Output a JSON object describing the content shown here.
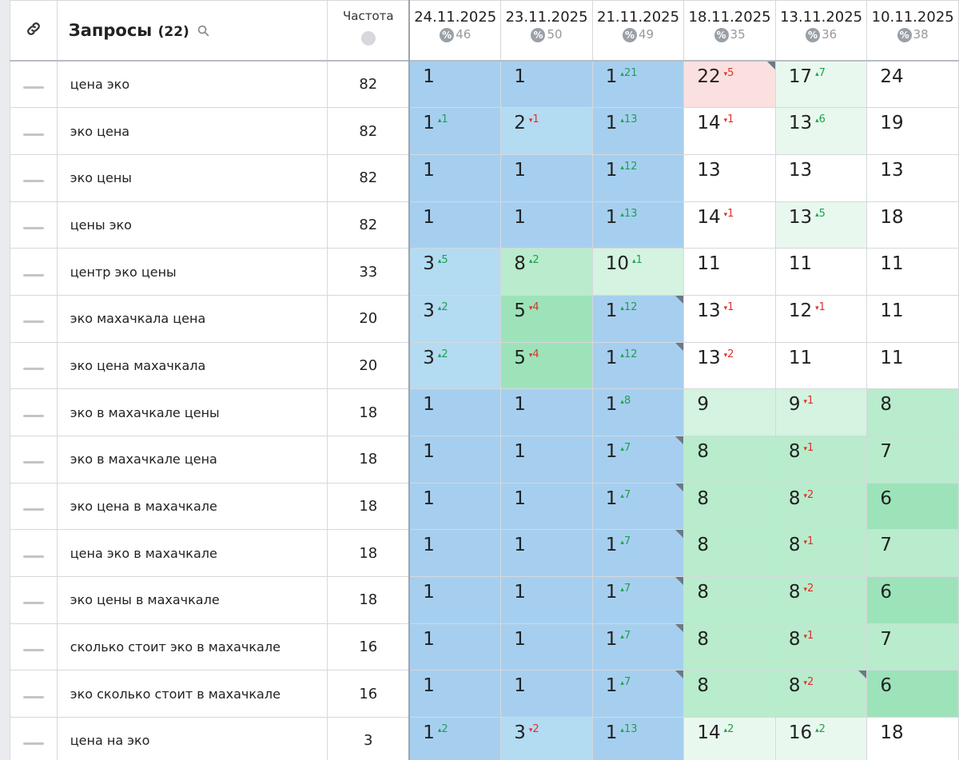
{
  "header": {
    "link_icon": "link-icon",
    "queries_title": "Запросы",
    "queries_count": "(22)",
    "search_icon": "search-icon",
    "frequency_label": "Частота",
    "frequency_icon": "globe-icon",
    "dates": [
      {
        "date": "24.11.2025",
        "pct": "46"
      },
      {
        "date": "23.11.2025",
        "pct": "50"
      },
      {
        "date": "21.11.2025",
        "pct": "49"
      },
      {
        "date": "18.11.2025",
        "pct": "35"
      },
      {
        "date": "13.11.2025",
        "pct": "36"
      },
      {
        "date": "10.11.2025",
        "pct": "38"
      }
    ],
    "pct_icon": "%"
  },
  "colors": {
    "top": "#a6cfef",
    "high": "#b3dbf2",
    "green_light": "#d4f3e0",
    "green": "#b8eccc",
    "green_dark": "#9de3ba",
    "pink": "#fbe0e0",
    "white": "#ffffff",
    "up": "#1da14e",
    "down": "#e0302a"
  },
  "rows": [
    {
      "query": "цена эко",
      "freq": "82",
      "cells": [
        {
          "v": "1",
          "c": "top"
        },
        {
          "v": "1",
          "c": "top"
        },
        {
          "v": "1",
          "d": "21",
          "dir": "up",
          "c": "top"
        },
        {
          "v": "22",
          "d": "5",
          "dir": "down",
          "c": "pk",
          "tri": true
        },
        {
          "v": "17",
          "d": "7",
          "dir": "up",
          "c": "gl"
        },
        {
          "v": "24",
          "c": "w"
        }
      ]
    },
    {
      "query": "эко цена",
      "freq": "82",
      "cells": [
        {
          "v": "1",
          "d": "1",
          "dir": "up",
          "c": "top"
        },
        {
          "v": "2",
          "d": "1",
          "dir": "down",
          "c": "hi"
        },
        {
          "v": "1",
          "d": "13",
          "dir": "up",
          "c": "top"
        },
        {
          "v": "14",
          "d": "1",
          "dir": "down",
          "c": "w"
        },
        {
          "v": "13",
          "d": "6",
          "dir": "up",
          "c": "gl"
        },
        {
          "v": "19",
          "c": "w"
        }
      ]
    },
    {
      "query": "эко цены",
      "freq": "82",
      "cells": [
        {
          "v": "1",
          "c": "top"
        },
        {
          "v": "1",
          "c": "top"
        },
        {
          "v": "1",
          "d": "12",
          "dir": "up",
          "c": "top"
        },
        {
          "v": "13",
          "c": "w"
        },
        {
          "v": "13",
          "c": "w"
        },
        {
          "v": "13",
          "c": "w"
        }
      ]
    },
    {
      "query": "цены эко",
      "freq": "82",
      "cells": [
        {
          "v": "1",
          "c": "top"
        },
        {
          "v": "1",
          "c": "top"
        },
        {
          "v": "1",
          "d": "13",
          "dir": "up",
          "c": "top"
        },
        {
          "v": "14",
          "d": "1",
          "dir": "down",
          "c": "w"
        },
        {
          "v": "13",
          "d": "5",
          "dir": "up",
          "c": "gl"
        },
        {
          "v": "18",
          "c": "w"
        }
      ]
    },
    {
      "query": "центр эко цены",
      "freq": "33",
      "cells": [
        {
          "v": "3",
          "d": "5",
          "dir": "up",
          "c": "hi"
        },
        {
          "v": "8",
          "d": "2",
          "dir": "up",
          "c": "g2"
        },
        {
          "v": "10",
          "d": "1",
          "dir": "up",
          "c": "g1"
        },
        {
          "v": "11",
          "c": "w"
        },
        {
          "v": "11",
          "c": "w"
        },
        {
          "v": "11",
          "c": "w"
        }
      ]
    },
    {
      "query": "эко махачкала цена",
      "freq": "20",
      "cells": [
        {
          "v": "3",
          "d": "2",
          "dir": "up",
          "c": "hi"
        },
        {
          "v": "5",
          "d": "4",
          "dir": "down",
          "c": "g3"
        },
        {
          "v": "1",
          "d": "12",
          "dir": "up",
          "c": "top",
          "tri": true
        },
        {
          "v": "13",
          "d": "1",
          "dir": "down",
          "c": "w"
        },
        {
          "v": "12",
          "d": "1",
          "dir": "down",
          "c": "w"
        },
        {
          "v": "11",
          "c": "w"
        }
      ]
    },
    {
      "query": "эко цена махачкала",
      "freq": "20",
      "cells": [
        {
          "v": "3",
          "d": "2",
          "dir": "up",
          "c": "hi"
        },
        {
          "v": "5",
          "d": "4",
          "dir": "down",
          "c": "g3"
        },
        {
          "v": "1",
          "d": "12",
          "dir": "up",
          "c": "top",
          "tri": true
        },
        {
          "v": "13",
          "d": "2",
          "dir": "down",
          "c": "w"
        },
        {
          "v": "11",
          "c": "w"
        },
        {
          "v": "11",
          "c": "w"
        }
      ]
    },
    {
      "query": "эко в махачкале цены",
      "freq": "18",
      "cells": [
        {
          "v": "1",
          "c": "top"
        },
        {
          "v": "1",
          "c": "top"
        },
        {
          "v": "1",
          "d": "8",
          "dir": "up",
          "c": "top"
        },
        {
          "v": "9",
          "c": "g1"
        },
        {
          "v": "9",
          "d": "1",
          "dir": "down",
          "c": "g1"
        },
        {
          "v": "8",
          "c": "g2"
        }
      ]
    },
    {
      "query": "эко в махачкале цена",
      "freq": "18",
      "cells": [
        {
          "v": "1",
          "c": "top"
        },
        {
          "v": "1",
          "c": "top"
        },
        {
          "v": "1",
          "d": "7",
          "dir": "up",
          "c": "top",
          "tri": true
        },
        {
          "v": "8",
          "c": "g2"
        },
        {
          "v": "8",
          "d": "1",
          "dir": "down",
          "c": "g2"
        },
        {
          "v": "7",
          "c": "g2"
        }
      ]
    },
    {
      "query": "эко цена в махачкале",
      "freq": "18",
      "cells": [
        {
          "v": "1",
          "c": "top"
        },
        {
          "v": "1",
          "c": "top"
        },
        {
          "v": "1",
          "d": "7",
          "dir": "up",
          "c": "top",
          "tri": true
        },
        {
          "v": "8",
          "c": "g2"
        },
        {
          "v": "8",
          "d": "2",
          "dir": "down",
          "c": "g2"
        },
        {
          "v": "6",
          "c": "g3"
        }
      ]
    },
    {
      "query": "цена эко в махачкале",
      "freq": "18",
      "cells": [
        {
          "v": "1",
          "c": "top"
        },
        {
          "v": "1",
          "c": "top"
        },
        {
          "v": "1",
          "d": "7",
          "dir": "up",
          "c": "top",
          "tri": true
        },
        {
          "v": "8",
          "c": "g2"
        },
        {
          "v": "8",
          "d": "1",
          "dir": "down",
          "c": "g2"
        },
        {
          "v": "7",
          "c": "g2"
        }
      ]
    },
    {
      "query": "эко цены в махачкале",
      "freq": "18",
      "cells": [
        {
          "v": "1",
          "c": "top"
        },
        {
          "v": "1",
          "c": "top"
        },
        {
          "v": "1",
          "d": "7",
          "dir": "up",
          "c": "top",
          "tri": true
        },
        {
          "v": "8",
          "c": "g2"
        },
        {
          "v": "8",
          "d": "2",
          "dir": "down",
          "c": "g2"
        },
        {
          "v": "6",
          "c": "g3"
        }
      ]
    },
    {
      "query": "сколько стоит эко в махачкале",
      "freq": "16",
      "cells": [
        {
          "v": "1",
          "c": "top"
        },
        {
          "v": "1",
          "c": "top"
        },
        {
          "v": "1",
          "d": "7",
          "dir": "up",
          "c": "top",
          "tri": true
        },
        {
          "v": "8",
          "c": "g2"
        },
        {
          "v": "8",
          "d": "1",
          "dir": "down",
          "c": "g2"
        },
        {
          "v": "7",
          "c": "g2"
        }
      ]
    },
    {
      "query": "эко сколько стоит в махачкале",
      "freq": "16",
      "cells": [
        {
          "v": "1",
          "c": "top"
        },
        {
          "v": "1",
          "c": "top"
        },
        {
          "v": "1",
          "d": "7",
          "dir": "up",
          "c": "top",
          "tri": true
        },
        {
          "v": "8",
          "c": "g2"
        },
        {
          "v": "8",
          "d": "2",
          "dir": "down",
          "c": "g2",
          "tri": true
        },
        {
          "v": "6",
          "c": "g3"
        }
      ]
    },
    {
      "query": "цена на эко",
      "freq": "3",
      "cells": [
        {
          "v": "1",
          "d": "2",
          "dir": "up",
          "c": "top"
        },
        {
          "v": "3",
          "d": "2",
          "dir": "down",
          "c": "hi"
        },
        {
          "v": "1",
          "d": "13",
          "dir": "up",
          "c": "top"
        },
        {
          "v": "14",
          "d": "2",
          "dir": "up",
          "c": "gl"
        },
        {
          "v": "16",
          "d": "2",
          "dir": "up",
          "c": "gl"
        },
        {
          "v": "18",
          "c": "w"
        }
      ]
    }
  ]
}
